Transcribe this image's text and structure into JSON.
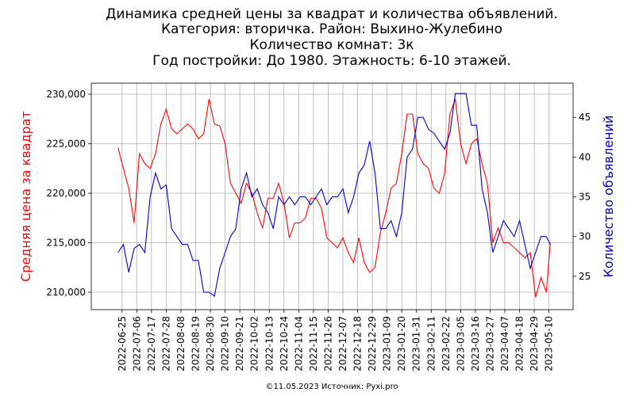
{
  "chart_data": {
    "type": "line",
    "title": [
      "Динамика средней цены за квадрат и количества объявлений.",
      "Категория: вторичка. Район: Выхино-Жулебино",
      "Количество комнат: 3к",
      "Год постройки: До 1980. Этажность: 6-10 этажей."
    ],
    "ylabel": "Средняя цена за квадрат",
    "y2label": "Количество объявлений",
    "footer": "©11.05.2023 Источник: Pyxi.pro",
    "grid": true,
    "x": [
      "2022-06-22",
      "2022-06-26",
      "2022-06-30",
      "2022-07-04",
      "2022-07-08",
      "2022-07-12",
      "2022-07-16",
      "2022-07-20",
      "2022-07-24",
      "2022-07-28",
      "2022-08-01",
      "2022-08-05",
      "2022-08-09",
      "2022-08-13",
      "2022-08-17",
      "2022-08-21",
      "2022-08-25",
      "2022-08-29",
      "2022-09-02",
      "2022-09-06",
      "2022-09-10",
      "2022-09-14",
      "2022-09-18",
      "2022-09-22",
      "2022-09-26",
      "2022-09-30",
      "2022-10-04",
      "2022-10-08",
      "2022-10-12",
      "2022-10-16",
      "2022-10-20",
      "2022-10-24",
      "2022-10-28",
      "2022-11-01",
      "2022-11-05",
      "2022-11-09",
      "2022-11-13",
      "2022-11-17",
      "2022-11-21",
      "2022-11-25",
      "2022-11-29",
      "2022-12-03",
      "2022-12-07",
      "2022-12-11",
      "2022-12-15",
      "2022-12-19",
      "2022-12-23",
      "2022-12-27",
      "2022-12-31",
      "2023-01-04",
      "2023-01-08",
      "2023-01-12",
      "2023-01-16",
      "2023-01-20",
      "2023-01-24",
      "2023-01-28",
      "2023-02-01",
      "2023-02-05",
      "2023-02-09",
      "2023-02-13",
      "2023-02-17",
      "2023-02-21",
      "2023-02-25",
      "2023-03-01",
      "2023-03-05",
      "2023-03-09",
      "2023-03-13",
      "2023-03-17",
      "2023-03-21",
      "2023-03-25",
      "2023-03-29",
      "2023-04-02",
      "2023-04-06",
      "2023-04-10",
      "2023-04-14",
      "2023-04-18",
      "2023-04-22",
      "2023-04-26",
      "2023-04-30",
      "2023-05-04",
      "2023-05-08",
      "2023-05-11"
    ],
    "xlim": [
      "2022-06-02",
      "2023-05-28"
    ],
    "xticks": [
      "2022-06-25",
      "2022-07-06",
      "2022-07-17",
      "2022-07-28",
      "2022-08-08",
      "2022-08-19",
      "2022-08-30",
      "2022-09-10",
      "2022-09-21",
      "2022-10-02",
      "2022-10-13",
      "2022-10-24",
      "2022-11-04",
      "2022-11-15",
      "2022-11-26",
      "2022-12-07",
      "2022-12-18",
      "2022-12-29",
      "2023-01-09",
      "2023-01-20",
      "2023-01-31",
      "2023-02-11",
      "2023-02-22",
      "2023-03-05",
      "2023-03-16",
      "2023-03-27",
      "2023-04-07",
      "2023-04-18",
      "2023-04-29",
      "2023-05-10"
    ],
    "ylim": [
      208240,
      231120
    ],
    "yticks": [
      {
        "value": 210000,
        "label": "210,000"
      },
      {
        "value": 215000,
        "label": "215,000"
      },
      {
        "value": 220000,
        "label": "220,000"
      },
      {
        "value": 225000,
        "label": "225,000"
      },
      {
        "value": 230000,
        "label": "230,000"
      }
    ],
    "y2lim": [
      20.8,
      49.3
    ],
    "y2ticks": [
      25,
      30,
      35,
      40,
      45
    ],
    "series": [
      {
        "name": "Средняя цена за квадрат",
        "color": "#ff0000",
        "axis": "y",
        "values": [
          224600,
          222500,
          220500,
          217000,
          224000,
          223000,
          222500,
          224000,
          227000,
          228500,
          226500,
          226000,
          226500,
          227000,
          226500,
          225500,
          226000,
          229500,
          227000,
          226800,
          225000,
          221000,
          220000,
          219000,
          221000,
          220000,
          218000,
          216500,
          219500,
          219500,
          221000,
          219000,
          215500,
          217000,
          217000,
          217500,
          219500,
          219500,
          218500,
          215500,
          215000,
          214500,
          215500,
          214000,
          213000,
          215500,
          213000,
          212000,
          212500,
          216000,
          218000,
          220500,
          221000,
          224000,
          228000,
          228000,
          224000,
          223000,
          222500,
          220500,
          220000,
          222000,
          228000,
          229500,
          225000,
          223000,
          225000,
          225500,
          223000,
          221000,
          215000,
          216500,
          215000,
          215000,
          214500,
          214000,
          213500,
          214000,
          209500,
          211500,
          210000,
          215000
        ]
      },
      {
        "name": "Количество объявлений",
        "color": "#0000cc",
        "axis": "y2",
        "values": [
          28,
          29,
          25.5,
          28.5,
          29,
          28,
          35,
          38,
          36,
          36.5,
          31,
          30,
          29,
          29,
          27,
          27,
          23,
          23,
          22.5,
          26,
          28,
          30,
          31,
          36,
          38,
          35,
          36,
          34,
          33,
          31,
          35,
          34,
          35,
          34,
          35,
          35,
          34,
          35,
          36,
          34,
          35,
          35,
          36,
          33,
          35,
          38,
          39,
          42,
          38,
          31,
          31,
          32,
          30,
          33,
          40,
          41,
          45,
          45,
          43.5,
          43,
          42,
          41,
          43,
          48,
          48,
          48,
          44,
          44,
          36,
          33,
          28,
          30,
          32,
          31,
          30,
          32,
          29,
          26,
          28,
          30,
          30,
          29
        ]
      }
    ]
  }
}
